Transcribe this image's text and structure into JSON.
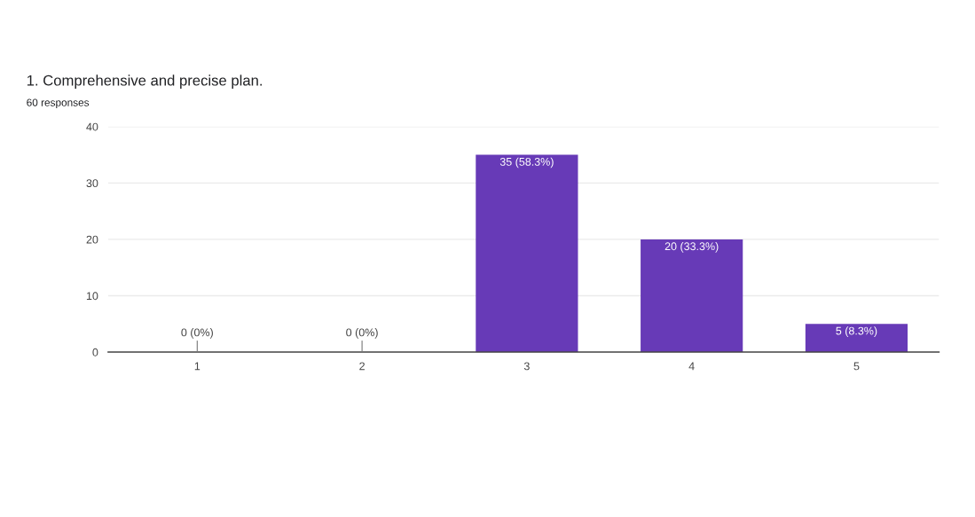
{
  "chart_data": {
    "type": "bar",
    "title": "1. Comprehensive and precise plan.",
    "subtitle": "60 responses",
    "categories": [
      "1",
      "2",
      "3",
      "4",
      "5"
    ],
    "values": [
      0,
      0,
      35,
      20,
      5
    ],
    "color": "#673ab7",
    "value_labels": [
      "0 (0%)",
      "0 (0%)",
      "35 (58.3%)",
      "20 (33.3%)",
      "5 (8.3%)"
    ],
    "ylim": [
      0,
      40
    ],
    "yticks": [
      0,
      10,
      20,
      30,
      40
    ],
    "grid": "y",
    "legend": false
  }
}
